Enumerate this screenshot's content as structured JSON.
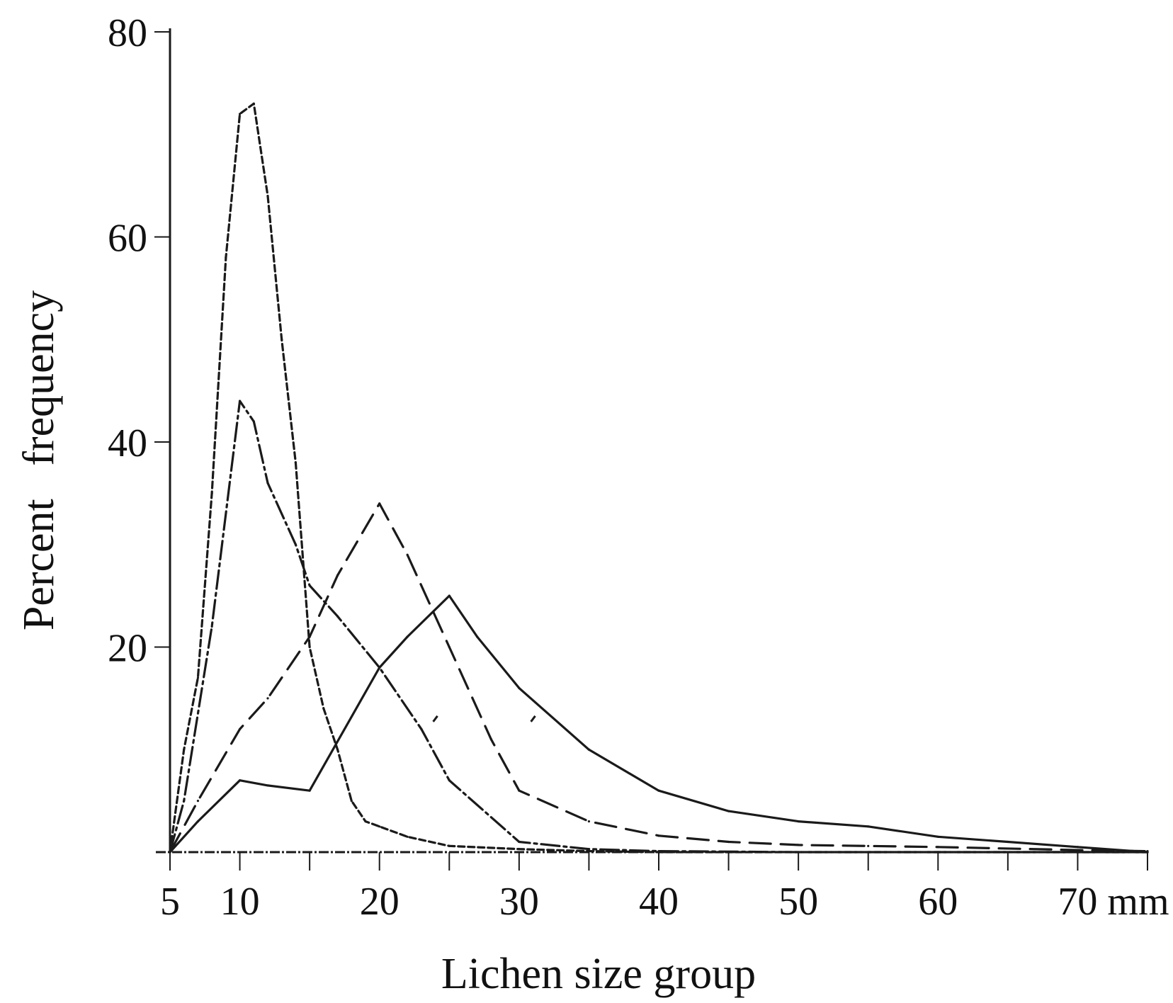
{
  "chart_data": {
    "type": "line",
    "xlabel": "Lichen size group",
    "ylabel": "Percent   frequency",
    "xlim": [
      5,
      75
    ],
    "ylim": [
      0,
      80
    ],
    "x_ticks": [
      {
        "value": 5,
        "label": "5"
      },
      {
        "value": 10,
        "label": "10"
      },
      {
        "value": 20,
        "label": "20"
      },
      {
        "value": 30,
        "label": "30"
      },
      {
        "value": 40,
        "label": "40"
      },
      {
        "value": 50,
        "label": "50"
      },
      {
        "value": 60,
        "label": "60"
      },
      {
        "value": 70,
        "label": "70 mm"
      }
    ],
    "x_minor_ticks": [
      15,
      25,
      35,
      45,
      55,
      65,
      75
    ],
    "y_ticks": [
      {
        "value": 20,
        "label": "20"
      },
      {
        "value": 40,
        "label": "40"
      },
      {
        "value": 60,
        "label": "60"
      },
      {
        "value": 80,
        "label": "80"
      }
    ],
    "grid": false,
    "series": [
      {
        "style": "short-dash",
        "color": "#1a1a1a",
        "x": [
          5,
          6,
          7,
          8,
          9,
          10,
          11,
          12,
          13,
          14,
          15,
          16,
          17,
          18,
          19,
          20,
          22,
          25,
          30,
          35,
          40,
          50,
          60,
          70,
          75
        ],
        "y": [
          0,
          10,
          17,
          35,
          58,
          72,
          73,
          64,
          50,
          38,
          20,
          14,
          10,
          5,
          3,
          2.5,
          1.5,
          0.6,
          0.3,
          0.1,
          0,
          0,
          0,
          0,
          0
        ]
      },
      {
        "style": "dash-dot",
        "color": "#1a1a1a",
        "x": [
          5,
          6,
          8,
          10,
          11,
          12,
          14,
          15,
          17,
          20,
          23,
          25,
          30,
          35,
          40,
          50,
          60,
          70,
          75
        ],
        "y": [
          0,
          5,
          22,
          44,
          42,
          36,
          30,
          26,
          23,
          18,
          12,
          7,
          1,
          0.3,
          0.1,
          0,
          0,
          0,
          0
        ],
        "extra_marks": [
          {
            "x": 24,
            "y": 13
          },
          {
            "x": 31,
            "y": 13
          }
        ]
      },
      {
        "style": "long-dash",
        "color": "#1a1a1a",
        "x": [
          5,
          7,
          10,
          12,
          15,
          17,
          20,
          22,
          25,
          28,
          30,
          35,
          40,
          45,
          50,
          55,
          60,
          70,
          75
        ],
        "y": [
          0,
          5,
          12,
          15,
          21,
          27,
          34,
          29,
          20,
          11,
          6,
          3,
          1.6,
          1,
          0.7,
          0.6,
          0.5,
          0.2,
          0.1
        ]
      },
      {
        "style": "solid",
        "color": "#1a1a1a",
        "x": [
          5,
          7,
          10,
          12,
          15,
          20,
          22,
          25,
          27,
          30,
          35,
          40,
          45,
          50,
          55,
          60,
          65,
          70,
          75
        ],
        "y": [
          0,
          3,
          7,
          6.5,
          6,
          18,
          21,
          25,
          21,
          16,
          10,
          6,
          4,
          3,
          2.5,
          1.5,
          1,
          0.5,
          0
        ]
      }
    ]
  }
}
